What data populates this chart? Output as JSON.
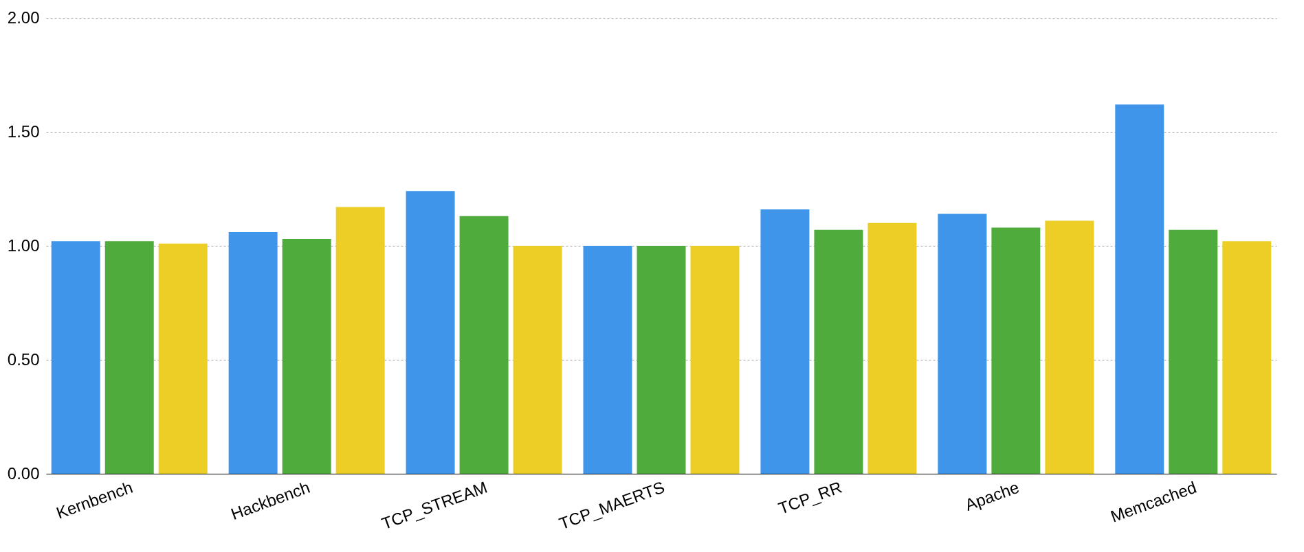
{
  "chart_data": {
    "type": "bar",
    "categories": [
      "Kernbench",
      "Hackbench",
      "TCP_STREAM",
      "TCP_MAERTS",
      "TCP_RR",
      "Apache",
      "Memcached"
    ],
    "series": [
      {
        "color": "#3f95ea",
        "values": [
          1.02,
          1.06,
          1.24,
          1.0,
          1.16,
          1.14,
          1.62
        ]
      },
      {
        "color": "#4fab3c",
        "values": [
          1.02,
          1.03,
          1.13,
          1.0,
          1.07,
          1.08,
          1.07
        ]
      },
      {
        "color": "#ecce27",
        "values": [
          1.01,
          1.17,
          1.0,
          1.0,
          1.1,
          1.11,
          1.02
        ]
      }
    ],
    "ylim": [
      0,
      2
    ],
    "yticks": [
      {
        "value": 0,
        "label": "0.00"
      },
      {
        "value": 0.5,
        "label": "0.50"
      },
      {
        "value": 1,
        "label": "1.00"
      },
      {
        "value": 1.5,
        "label": "1.50"
      },
      {
        "value": 2,
        "label": "2.00"
      }
    ],
    "grid": "y",
    "legend": false
  }
}
